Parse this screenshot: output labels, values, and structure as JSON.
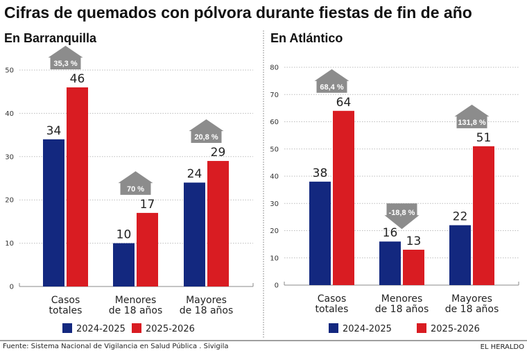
{
  "title": "Cifras de quemados con pólvora durante fiestas de fin de año",
  "source": "Fuente: Sistema Nacional de Vigilancia en Salud Pública . Sivigila",
  "brand": "EL HERALDO",
  "colors": {
    "2024-2025": "#13287f",
    "2025-2026": "#d91c22",
    "badge": "#8c8c8c"
  },
  "chart_data": [
    {
      "type": "bar",
      "title": "En Barranquilla",
      "categories": [
        "Casos totales",
        "Menores de 18 años",
        "Mayores de 18 años"
      ],
      "category_lines": [
        [
          "Casos",
          "totales"
        ],
        [
          "Menores",
          "de 18 años"
        ],
        [
          "Mayores",
          "de 18 años"
        ]
      ],
      "series": [
        {
          "name": "2024-2025",
          "values": [
            34,
            10,
            24
          ]
        },
        {
          "name": "2025-2026",
          "values": [
            46,
            17,
            29
          ]
        }
      ],
      "changes": [
        {
          "label": "35,3 %",
          "direction": "up"
        },
        {
          "label": "70 %",
          "direction": "up"
        },
        {
          "label": "20,8 %",
          "direction": "up"
        }
      ],
      "yticks": [
        0,
        10,
        20,
        30,
        40,
        50
      ],
      "ylim": [
        0,
        50
      ],
      "grid": true,
      "legend": "bottom"
    },
    {
      "type": "bar",
      "title": "En Atlántico",
      "categories": [
        "Casos totales",
        "Menores de 18 años",
        "Mayores de 18 años"
      ],
      "category_lines": [
        [
          "Casos",
          "totales"
        ],
        [
          "Menores",
          "de 18 años"
        ],
        [
          "Mayores",
          "de 18 años"
        ]
      ],
      "series": [
        {
          "name": "2024-2025",
          "values": [
            38,
            16,
            22
          ]
        },
        {
          "name": "2025-2026",
          "values": [
            64,
            13,
            51
          ]
        }
      ],
      "changes": [
        {
          "label": "68,4 %",
          "direction": "up"
        },
        {
          "label": "-18,8 %",
          "direction": "down"
        },
        {
          "label": "131,8 %",
          "direction": "up"
        }
      ],
      "yticks": [
        0,
        10,
        20,
        30,
        40,
        50,
        60,
        70,
        80
      ],
      "ylim": [
        0,
        80
      ],
      "grid": true,
      "legend": "bottom"
    }
  ]
}
